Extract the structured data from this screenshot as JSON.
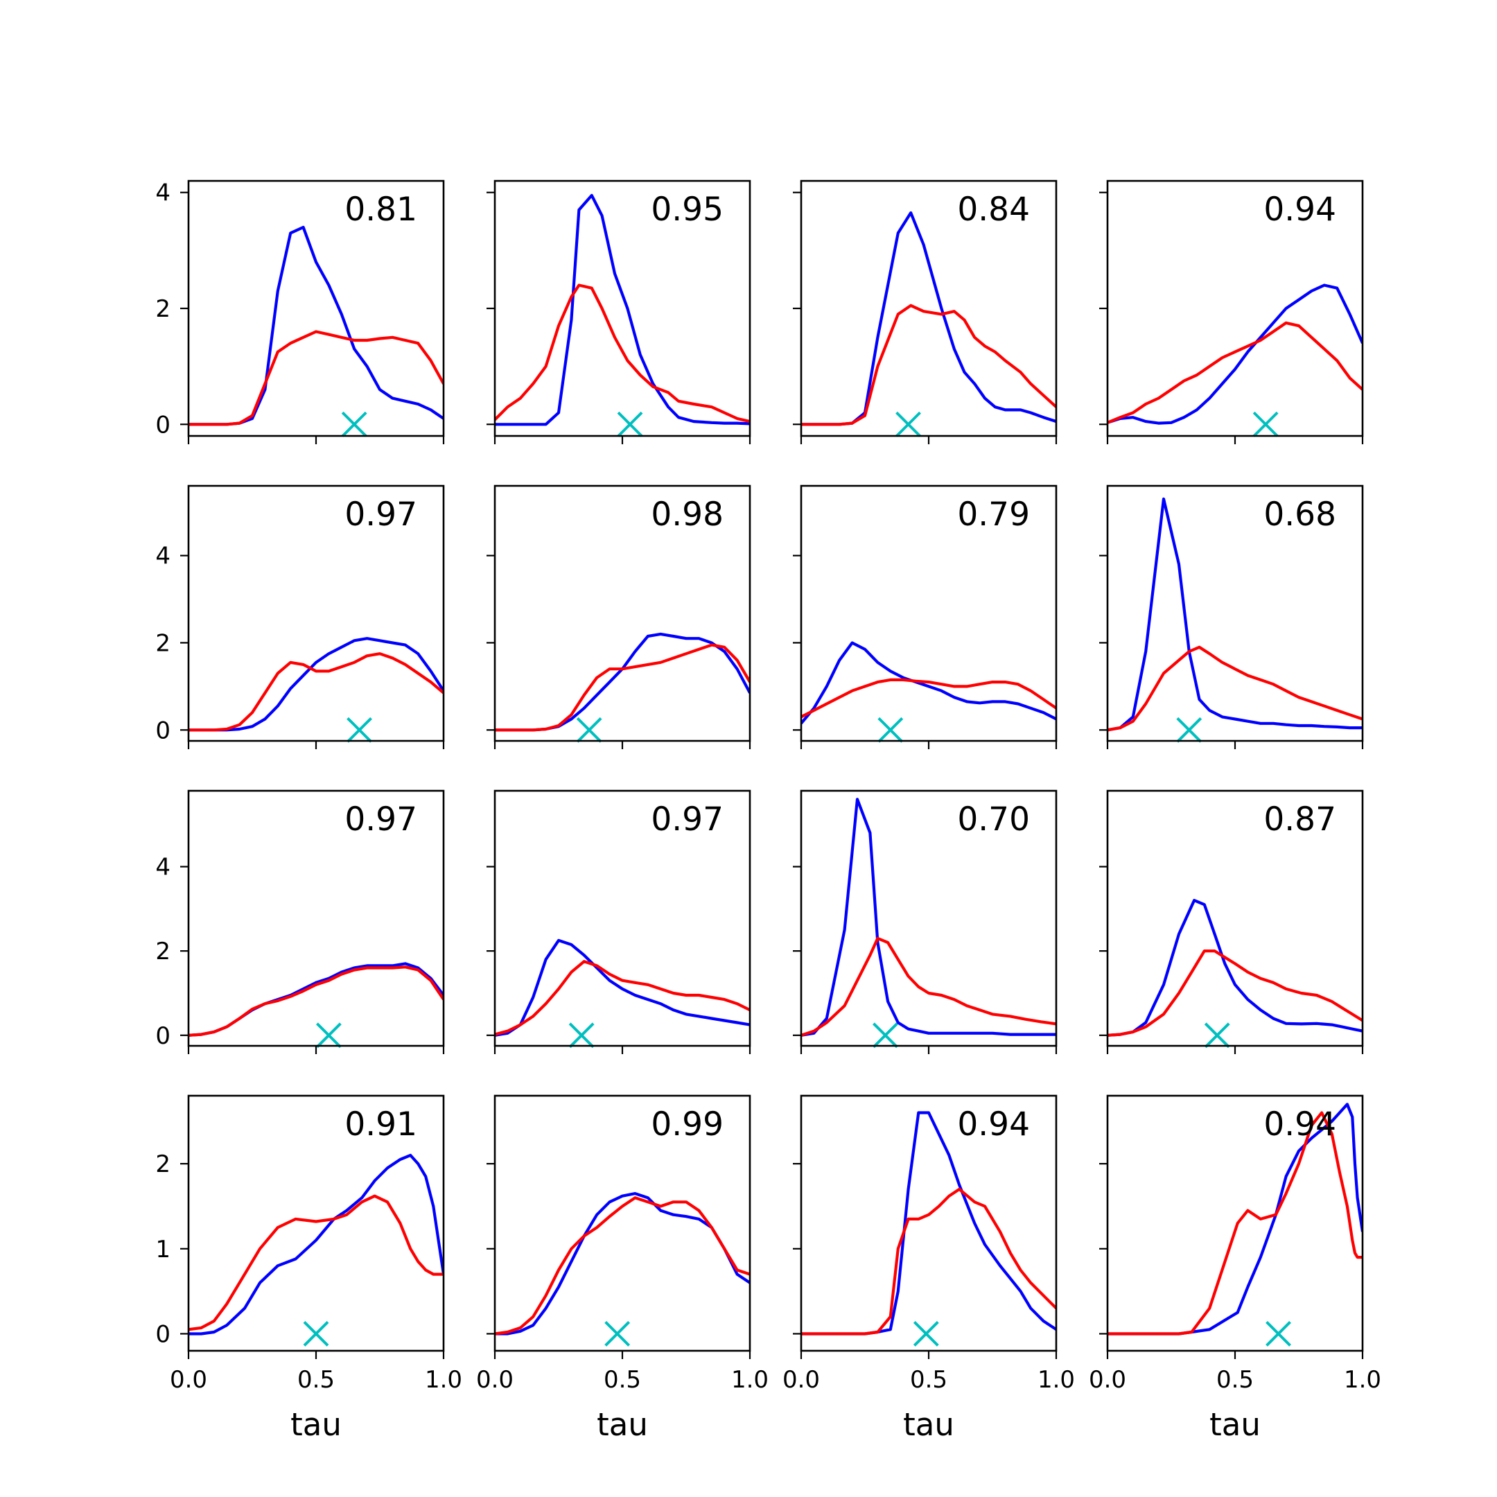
{
  "chart_data": {
    "type": "line",
    "layout": "4x4 grid of subplots; rows share y axis, columns share x axis",
    "xlim": [
      0,
      1
    ],
    "xticks": [
      0.0,
      0.5,
      1.0
    ],
    "xtick_labels": [
      "0.0",
      "0.5",
      "1.0"
    ],
    "xlabel": "tau",
    "row_ylim": [
      [
        -0.2,
        4.2
      ],
      [
        -0.25,
        5.6
      ],
      [
        -0.25,
        5.8
      ],
      [
        -0.2,
        2.8
      ]
    ],
    "row_yticks": [
      [
        0,
        2,
        4
      ],
      [
        0,
        2,
        4
      ],
      [
        0,
        2,
        4
      ],
      [
        0,
        1,
        2
      ]
    ],
    "series_colors": {
      "blue": "#0000ff",
      "red": "#ff0000",
      "marker": "#00bfbf"
    },
    "x": [
      0.0,
      0.05,
      0.1,
      0.15,
      0.2,
      0.25,
      0.3,
      0.35,
      0.4,
      0.45,
      0.5,
      0.55,
      0.6,
      0.65,
      0.7,
      0.75,
      0.8,
      0.85,
      0.9,
      0.95,
      1.0
    ],
    "panels": [
      {
        "row": 0,
        "col": 0,
        "label": "0.81",
        "marker_x": 0.65,
        "blue": [
          0,
          0,
          0,
          0,
          0.02,
          0.1,
          0.6,
          2.3,
          3.3,
          3.4,
          2.8,
          2.4,
          1.9,
          1.3,
          1.0,
          0.6,
          0.45,
          0.4,
          0.35,
          0.25,
          0.1
        ],
        "red": [
          0,
          0,
          0,
          0,
          0.02,
          0.15,
          0.7,
          1.25,
          1.4,
          1.5,
          1.6,
          1.55,
          1.5,
          1.45,
          1.45,
          1.48,
          1.5,
          1.45,
          1.4,
          1.1,
          0.7
        ]
      },
      {
        "row": 0,
        "col": 1,
        "label": "0.95",
        "marker_x": 0.53,
        "blue": [
          0,
          0,
          0,
          0,
          0,
          0.2,
          1.8,
          3.7,
          3.95,
          3.6,
          2.6,
          2.0,
          1.2,
          0.7,
          0.3,
          0.12,
          0.05,
          0.03,
          0.02,
          0.02,
          0.01
        ],
        "red": [
          0.08,
          0.3,
          0.45,
          0.7,
          1.0,
          1.7,
          2.2,
          2.4,
          2.35,
          2.0,
          1.5,
          1.1,
          0.85,
          0.65,
          0.55,
          0.4,
          0.35,
          0.3,
          0.2,
          0.1,
          0.05
        ],
        "x_override": [
          0.0,
          0.05,
          0.1,
          0.15,
          0.2,
          0.25,
          0.3,
          0.33,
          0.38,
          0.42,
          0.47,
          0.52,
          0.57,
          0.62,
          0.68,
          0.72,
          0.78,
          0.85,
          0.9,
          0.95,
          1.0
        ]
      },
      {
        "row": 0,
        "col": 2,
        "label": "0.84",
        "marker_x": 0.42,
        "blue": [
          0,
          0,
          0,
          0,
          0.02,
          0.2,
          1.5,
          3.3,
          3.65,
          3.1,
          2.0,
          1.3,
          0.9,
          0.7,
          0.45,
          0.3,
          0.25,
          0.25,
          0.2,
          0.12,
          0.05
        ],
        "red": [
          0,
          0,
          0,
          0,
          0.02,
          0.15,
          1.0,
          1.9,
          2.05,
          1.95,
          1.9,
          1.95,
          1.8,
          1.5,
          1.35,
          1.25,
          1.1,
          0.9,
          0.7,
          0.5,
          0.3
        ],
        "x_override": [
          0.0,
          0.05,
          0.1,
          0.15,
          0.2,
          0.25,
          0.3,
          0.38,
          0.43,
          0.48,
          0.55,
          0.6,
          0.64,
          0.68,
          0.72,
          0.76,
          0.8,
          0.86,
          0.9,
          0.95,
          1.0
        ]
      },
      {
        "row": 0,
        "col": 3,
        "label": "0.94",
        "marker_x": 0.62,
        "blue": [
          0.03,
          0.1,
          0.12,
          0.05,
          0.02,
          0.03,
          0.12,
          0.25,
          0.45,
          0.7,
          0.95,
          1.25,
          1.5,
          1.75,
          2.0,
          2.15,
          2.3,
          2.4,
          2.35,
          1.9,
          1.4
        ],
        "red": [
          0.03,
          0.12,
          0.2,
          0.35,
          0.45,
          0.6,
          0.75,
          0.85,
          1.0,
          1.15,
          1.25,
          1.35,
          1.45,
          1.6,
          1.75,
          1.7,
          1.5,
          1.3,
          1.1,
          0.8,
          0.6
        ]
      },
      {
        "row": 1,
        "col": 0,
        "label": "0.97",
        "marker_x": 0.67,
        "blue": [
          0,
          0,
          0,
          0,
          0.02,
          0.08,
          0.25,
          0.55,
          0.95,
          1.25,
          1.55,
          1.75,
          1.9,
          2.05,
          2.1,
          2.05,
          2.0,
          1.95,
          1.75,
          1.35,
          0.9
        ],
        "red": [
          0,
          0,
          0,
          0.02,
          0.12,
          0.4,
          0.85,
          1.3,
          1.55,
          1.5,
          1.35,
          1.35,
          1.45,
          1.55,
          1.7,
          1.75,
          1.65,
          1.5,
          1.3,
          1.1,
          0.85
        ]
      },
      {
        "row": 1,
        "col": 1,
        "label": "0.98",
        "marker_x": 0.37,
        "blue": [
          0,
          0,
          0,
          0,
          0.02,
          0.08,
          0.25,
          0.5,
          0.8,
          1.1,
          1.4,
          1.8,
          2.15,
          2.2,
          2.15,
          2.1,
          2.1,
          2.0,
          1.8,
          1.4,
          0.85
        ],
        "red": [
          0,
          0,
          0,
          0,
          0.02,
          0.1,
          0.35,
          0.8,
          1.2,
          1.4,
          1.4,
          1.45,
          1.5,
          1.55,
          1.65,
          1.75,
          1.85,
          1.95,
          1.9,
          1.6,
          1.1
        ]
      },
      {
        "row": 1,
        "col": 2,
        "label": "0.79",
        "marker_x": 0.35,
        "blue": [
          0.15,
          0.5,
          1.0,
          1.6,
          2.0,
          1.85,
          1.55,
          1.35,
          1.2,
          1.1,
          1.0,
          0.9,
          0.75,
          0.65,
          0.62,
          0.65,
          0.65,
          0.6,
          0.5,
          0.4,
          0.25
        ],
        "red": [
          0.3,
          0.45,
          0.6,
          0.75,
          0.9,
          1.0,
          1.1,
          1.15,
          1.15,
          1.12,
          1.1,
          1.05,
          1.0,
          1.0,
          1.05,
          1.1,
          1.1,
          1.05,
          0.9,
          0.7,
          0.5
        ]
      },
      {
        "row": 1,
        "col": 3,
        "label": "0.68",
        "marker_x": 0.32,
        "blue": [
          0,
          0.05,
          0.3,
          1.8,
          5.3,
          3.8,
          1.8,
          0.7,
          0.45,
          0.3,
          0.25,
          0.2,
          0.15,
          0.15,
          0.12,
          0.1,
          0.1,
          0.08,
          0.07,
          0.05,
          0.05
        ],
        "red": [
          0,
          0.05,
          0.2,
          0.6,
          1.3,
          1.6,
          1.8,
          1.9,
          1.75,
          1.55,
          1.4,
          1.25,
          1.15,
          1.05,
          0.9,
          0.75,
          0.65,
          0.55,
          0.45,
          0.35,
          0.25
        ],
        "x_override": [
          0.0,
          0.05,
          0.1,
          0.15,
          0.22,
          0.28,
          0.32,
          0.36,
          0.4,
          0.45,
          0.5,
          0.55,
          0.6,
          0.65,
          0.7,
          0.75,
          0.8,
          0.85,
          0.9,
          0.95,
          1.0
        ]
      },
      {
        "row": 2,
        "col": 0,
        "label": "0.97",
        "marker_x": 0.55,
        "blue": [
          0,
          0.02,
          0.08,
          0.2,
          0.4,
          0.6,
          0.75,
          0.85,
          0.95,
          1.1,
          1.25,
          1.35,
          1.5,
          1.6,
          1.65,
          1.65,
          1.65,
          1.7,
          1.6,
          1.35,
          0.95
        ],
        "red": [
          0,
          0.02,
          0.08,
          0.2,
          0.4,
          0.62,
          0.75,
          0.82,
          0.92,
          1.05,
          1.2,
          1.3,
          1.45,
          1.55,
          1.6,
          1.6,
          1.6,
          1.62,
          1.55,
          1.3,
          0.85
        ]
      },
      {
        "row": 2,
        "col": 1,
        "label": "0.97",
        "marker_x": 0.34,
        "blue": [
          0,
          0.05,
          0.25,
          0.9,
          1.8,
          2.25,
          2.15,
          1.9,
          1.6,
          1.3,
          1.1,
          0.95,
          0.85,
          0.75,
          0.6,
          0.5,
          0.45,
          0.4,
          0.35,
          0.3,
          0.25
        ],
        "red": [
          0.02,
          0.1,
          0.25,
          0.45,
          0.75,
          1.1,
          1.5,
          1.75,
          1.65,
          1.45,
          1.3,
          1.25,
          1.2,
          1.1,
          1.0,
          0.95,
          0.95,
          0.9,
          0.85,
          0.75,
          0.6
        ]
      },
      {
        "row": 2,
        "col": 2,
        "label": "0.70",
        "marker_x": 0.33,
        "blue": [
          0,
          0.05,
          0.4,
          2.5,
          5.6,
          4.8,
          2.2,
          0.8,
          0.3,
          0.15,
          0.1,
          0.05,
          0.05,
          0.05,
          0.05,
          0.05,
          0.05,
          0.02,
          0.02,
          0.02,
          0.02
        ],
        "red": [
          0,
          0.1,
          0.3,
          0.7,
          1.3,
          1.9,
          2.3,
          2.2,
          1.8,
          1.4,
          1.15,
          1.0,
          0.95,
          0.85,
          0.7,
          0.6,
          0.5,
          0.45,
          0.38,
          0.32,
          0.27
        ],
        "x_override": [
          0.0,
          0.05,
          0.1,
          0.17,
          0.22,
          0.27,
          0.3,
          0.34,
          0.38,
          0.42,
          0.46,
          0.5,
          0.55,
          0.6,
          0.65,
          0.7,
          0.75,
          0.82,
          0.88,
          0.94,
          1.0
        ]
      },
      {
        "row": 2,
        "col": 3,
        "label": "0.87",
        "marker_x": 0.43,
        "blue": [
          0,
          0.02,
          0.08,
          0.3,
          1.2,
          2.4,
          3.2,
          3.1,
          2.4,
          1.7,
          1.2,
          0.85,
          0.6,
          0.4,
          0.28,
          0.27,
          0.28,
          0.25,
          0.2,
          0.15,
          0.1
        ],
        "red": [
          0,
          0.02,
          0.08,
          0.2,
          0.5,
          1.0,
          1.6,
          2.0,
          2.0,
          1.85,
          1.7,
          1.5,
          1.35,
          1.25,
          1.1,
          1.0,
          0.95,
          0.8,
          0.65,
          0.5,
          0.35
        ],
        "x_override": [
          0.0,
          0.05,
          0.1,
          0.15,
          0.22,
          0.28,
          0.34,
          0.38,
          0.42,
          0.46,
          0.5,
          0.55,
          0.6,
          0.65,
          0.7,
          0.76,
          0.82,
          0.88,
          0.92,
          0.96,
          1.0
        ]
      },
      {
        "row": 3,
        "col": 0,
        "label": "0.91",
        "marker_x": 0.5,
        "blue": [
          0,
          0,
          0.02,
          0.1,
          0.3,
          0.6,
          0.8,
          0.88,
          1.1,
          1.35,
          1.45,
          1.6,
          1.8,
          1.95,
          2.05,
          2.1,
          2.0,
          1.85,
          1.5,
          1.1,
          0.7
        ],
        "red": [
          0.05,
          0.07,
          0.15,
          0.35,
          0.7,
          1.0,
          1.25,
          1.35,
          1.32,
          1.35,
          1.4,
          1.55,
          1.62,
          1.55,
          1.3,
          1.0,
          0.85,
          0.75,
          0.7,
          0.7,
          0.7
        ],
        "x_override": [
          0.0,
          0.05,
          0.1,
          0.15,
          0.22,
          0.28,
          0.35,
          0.42,
          0.5,
          0.57,
          0.62,
          0.68,
          0.73,
          0.78,
          0.83,
          0.87,
          0.9,
          0.93,
          0.96,
          0.98,
          1.0
        ]
      },
      {
        "row": 3,
        "col": 1,
        "label": "0.99",
        "marker_x": 0.48,
        "blue": [
          0,
          0,
          0.03,
          0.1,
          0.3,
          0.55,
          0.85,
          1.15,
          1.4,
          1.55,
          1.62,
          1.65,
          1.6,
          1.45,
          1.4,
          1.38,
          1.35,
          1.25,
          1.0,
          0.7,
          0.6
        ],
        "red": [
          0,
          0.02,
          0.07,
          0.2,
          0.45,
          0.75,
          1.0,
          1.15,
          1.25,
          1.38,
          1.5,
          1.6,
          1.55,
          1.5,
          1.55,
          1.55,
          1.45,
          1.25,
          1.0,
          0.75,
          0.7
        ]
      },
      {
        "row": 3,
        "col": 2,
        "label": "0.94",
        "marker_x": 0.49,
        "blue": [
          0,
          0,
          0,
          0,
          0.02,
          0.05,
          0.5,
          1.7,
          2.6,
          2.6,
          2.35,
          2.1,
          1.75,
          1.3,
          1.05,
          0.8,
          0.65,
          0.5,
          0.3,
          0.15,
          0.05
        ],
        "red": [
          0,
          0,
          0,
          0,
          0.02,
          0.2,
          1.0,
          1.35,
          1.35,
          1.4,
          1.5,
          1.62,
          1.7,
          1.55,
          1.5,
          1.2,
          0.95,
          0.75,
          0.6,
          0.45,
          0.3
        ],
        "x_override": [
          0.0,
          0.1,
          0.2,
          0.25,
          0.3,
          0.35,
          0.38,
          0.42,
          0.46,
          0.5,
          0.54,
          0.58,
          0.62,
          0.68,
          0.72,
          0.78,
          0.82,
          0.86,
          0.9,
          0.95,
          1.0
        ]
      },
      {
        "row": 3,
        "col": 3,
        "label": "0.94",
        "marker_x": 0.67,
        "blue": [
          0,
          0,
          0,
          0,
          0.02,
          0.05,
          0.25,
          0.55,
          0.9,
          1.4,
          1.85,
          2.15,
          2.3,
          2.4,
          2.5,
          2.6,
          2.7,
          2.55,
          2.0,
          1.6,
          1.2
        ],
        "red": [
          0,
          0,
          0,
          0,
          0.02,
          0.3,
          1.3,
          1.45,
          1.35,
          1.4,
          1.65,
          2.0,
          2.45,
          2.6,
          2.35,
          1.9,
          1.5,
          1.1,
          0.95,
          0.9,
          0.9
        ],
        "x_override": [
          0.0,
          0.1,
          0.2,
          0.28,
          0.33,
          0.4,
          0.51,
          0.55,
          0.6,
          0.66,
          0.7,
          0.75,
          0.8,
          0.84,
          0.88,
          0.91,
          0.94,
          0.96,
          0.97,
          0.98,
          1.0
        ]
      }
    ]
  }
}
